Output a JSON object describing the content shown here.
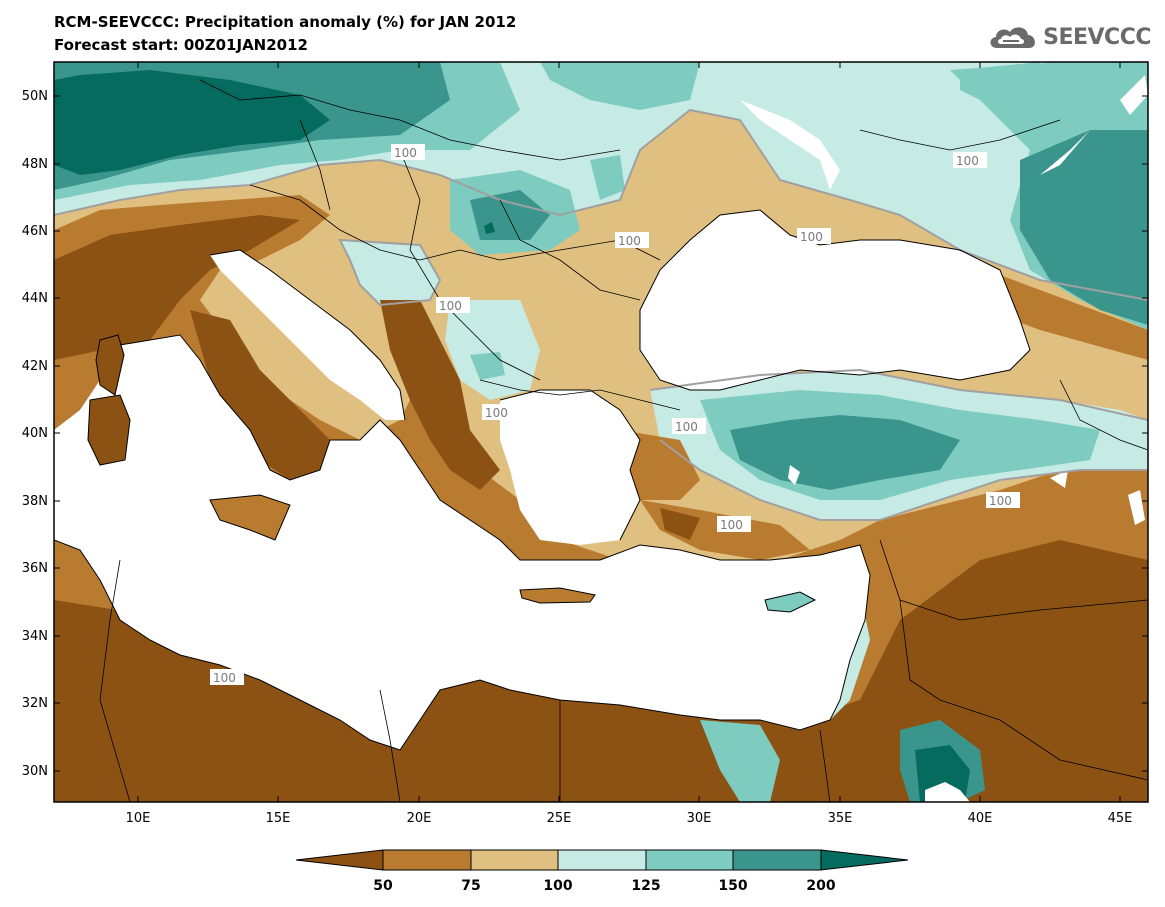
{
  "title": "RCM-SEEVCCC: Precipitation anomaly (%) for JAN 2012",
  "subtitle": "Forecast start: 00Z01JAN2012",
  "logo": {
    "text": "SEEVCCC",
    "icon": "cloud-icon"
  },
  "map": {
    "lon_range": [
      7,
      46
    ],
    "lat_range": [
      29,
      51
    ],
    "lat_ticks": [
      "50N",
      "48N",
      "46N",
      "44N",
      "42N",
      "40N",
      "38N",
      "36N",
      "34N",
      "32N",
      "30N"
    ],
    "lon_ticks": [
      "10E",
      "15E",
      "20E",
      "25E",
      "30E",
      "35E",
      "40E",
      "45E"
    ],
    "contour_labels": [
      "100",
      "100",
      "100",
      "100",
      "100",
      "100",
      "100",
      "100",
      "100",
      "100"
    ]
  },
  "colorbar": {
    "labels": [
      "50",
      "75",
      "100",
      "125",
      "150",
      "200"
    ],
    "colors": [
      "#8c5214",
      "#b97b30",
      "#e0c080",
      "#c6ebe5",
      "#7ecbc0",
      "#3a968c",
      "#046b5e"
    ]
  }
}
